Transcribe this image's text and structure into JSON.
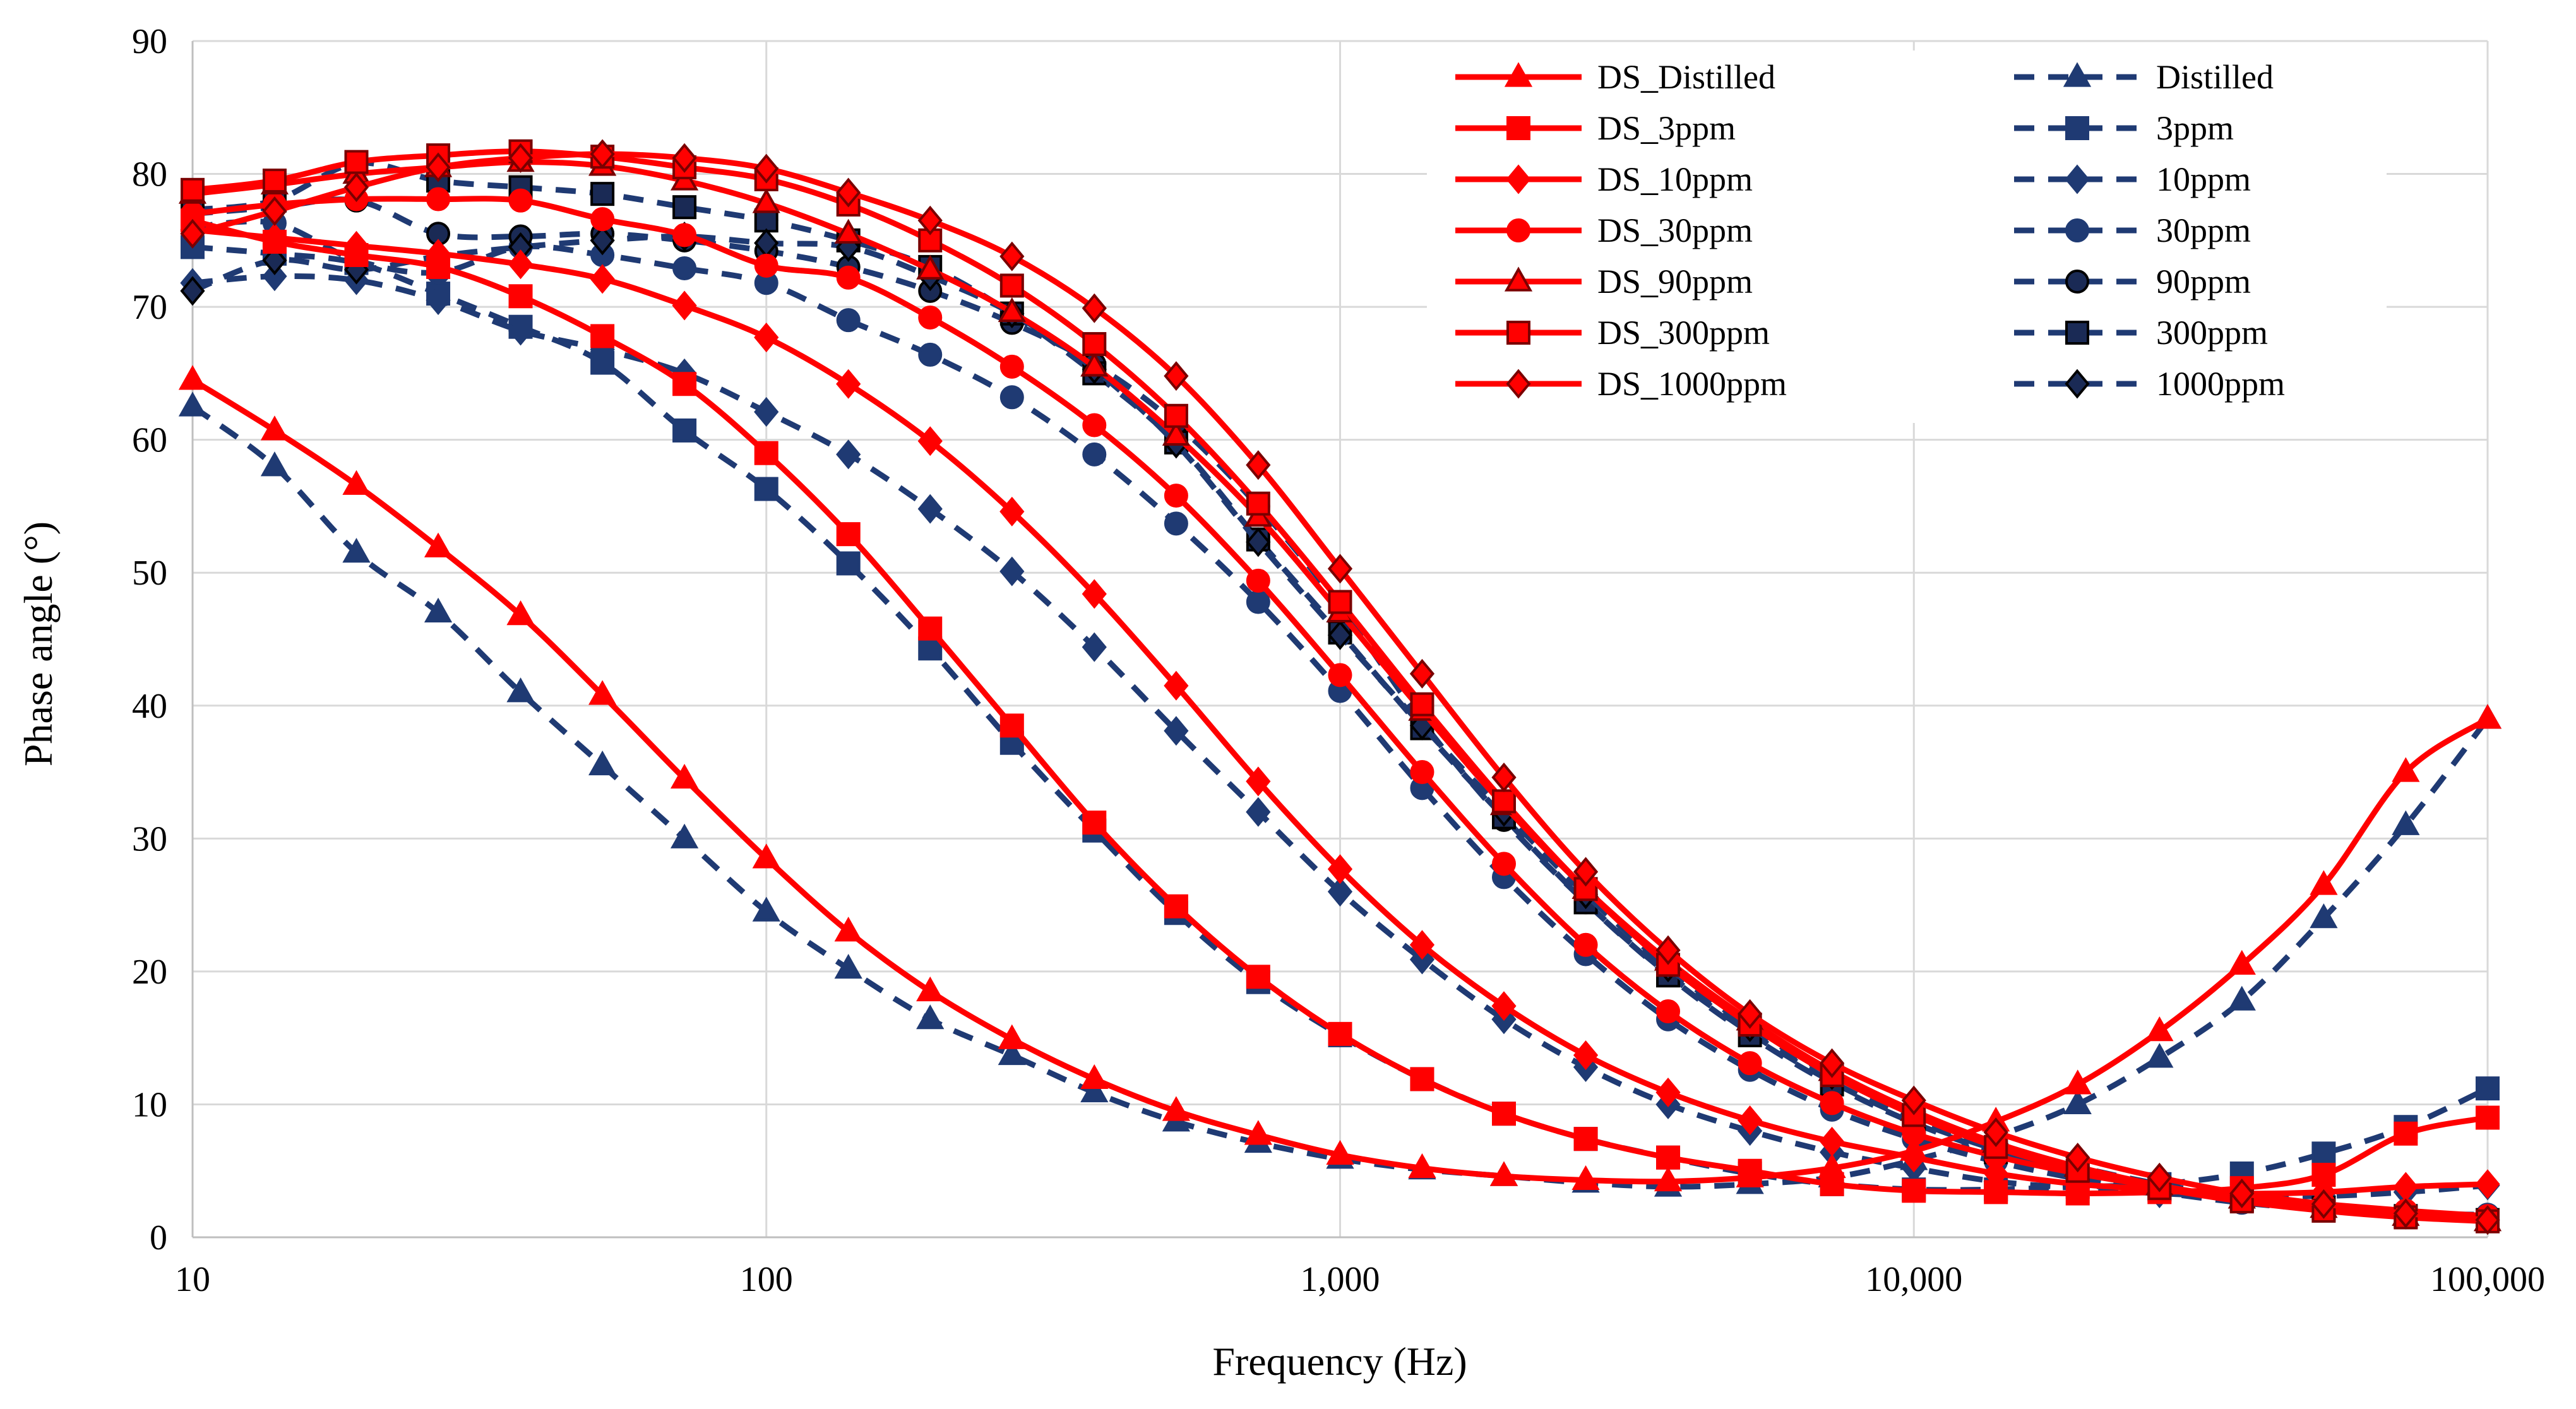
{
  "chart_data": {
    "type": "line",
    "title": "",
    "xlabel": "Frequency (Hz)",
    "ylabel": "Phase angle (°)",
    "xscale": "log",
    "xlim": [
      10,
      100000
    ],
    "ylim": [
      0,
      90
    ],
    "grid": true,
    "legend_position": "top-right",
    "x_ticks": [
      10,
      100,
      1000,
      10000,
      100000
    ],
    "x_tick_labels": [
      "10",
      "100",
      "1,000",
      "10,000",
      "100,000"
    ],
    "y_ticks": [
      0,
      10,
      20,
      30,
      40,
      50,
      60,
      70,
      80,
      90
    ],
    "y_tick_labels": [
      "0",
      "10",
      "20",
      "30",
      "40",
      "50",
      "60",
      "70",
      "80",
      "90"
    ],
    "x": [
      10,
      13.9,
      19.3,
      26.8,
      37.3,
      51.8,
      72,
      100,
      139,
      193,
      268,
      373,
      518,
      720,
      1000,
      1390,
      1930,
      2680,
      3730,
      5180,
      7200,
      10000,
      13900,
      19300,
      26800,
      37300,
      51800,
      72000,
      100000
    ],
    "series": [
      {
        "name": "DS_Distilled",
        "style": "solid",
        "color": "#ff0000",
        "marker": "triangle",
        "values": [
          64.5,
          60.7,
          56.6,
          51.9,
          46.8,
          40.8,
          34.5,
          28.5,
          23.0,
          18.5,
          14.9,
          11.9,
          9.5,
          7.7,
          6.2,
          5.2,
          4.6,
          4.3,
          4.2,
          4.5,
          5.2,
          6.5,
          8.7,
          11.5,
          15.5,
          20.5,
          26.5,
          35.0,
          39.0
        ]
      },
      {
        "name": "DS_3ppm",
        "style": "solid",
        "color": "#ff0000",
        "marker": "square",
        "values": [
          76.5,
          74.9,
          73.9,
          73.0,
          70.8,
          67.8,
          64.2,
          59.0,
          52.9,
          45.8,
          38.5,
          31.2,
          24.9,
          19.6,
          15.3,
          11.9,
          9.3,
          7.4,
          6.0,
          5.0,
          4.0,
          3.5,
          3.4,
          3.3,
          3.4,
          3.7,
          4.7,
          7.8,
          9.0
        ]
      },
      {
        "name": "DS_10ppm",
        "style": "solid",
        "color": "#ff0000",
        "marker": "diamond",
        "values": [
          75.8,
          75.2,
          74.6,
          74.0,
          73.2,
          72.1,
          70.1,
          67.7,
          64.2,
          59.9,
          54.6,
          48.4,
          41.5,
          34.3,
          27.7,
          22.0,
          17.4,
          13.7,
          10.9,
          8.8,
          7.2,
          6.0,
          4.8,
          4.0,
          3.6,
          3.3,
          3.4,
          3.8,
          4.0
        ]
      },
      {
        "name": "DS_30ppm",
        "style": "solid",
        "color": "#ff0000",
        "marker": "circle",
        "values": [
          77.0,
          77.7,
          78.1,
          78.1,
          78.0,
          76.6,
          75.4,
          73.1,
          72.2,
          69.2,
          65.5,
          61.1,
          55.8,
          49.4,
          42.3,
          35.0,
          28.1,
          22.0,
          17.0,
          13.1,
          10.1,
          7.8,
          6.1,
          4.8,
          3.8,
          3.0,
          2.5,
          2.0,
          1.6
        ]
      },
      {
        "name": "DS_90ppm",
        "style": "solid",
        "color": "#ff0000",
        "marker": "triangle",
        "values": [
          78.5,
          79.2,
          80.0,
          80.5,
          80.9,
          80.6,
          79.5,
          77.8,
          75.5,
          72.8,
          69.6,
          65.5,
          60.3,
          54.2,
          47.0,
          39.6,
          32.5,
          26.2,
          20.8,
          16.3,
          12.5,
          9.5,
          7.1,
          5.3,
          3.9,
          2.9,
          2.2,
          1.6,
          1.2
        ]
      },
      {
        "name": "DS_300ppm",
        "style": "solid",
        "color": "#ff0000",
        "marker": "square",
        "values": [
          78.8,
          79.5,
          80.9,
          81.4,
          81.7,
          81.3,
          80.5,
          79.6,
          77.7,
          75.0,
          71.6,
          67.2,
          61.8,
          55.2,
          47.8,
          40.1,
          32.8,
          26.2,
          20.5,
          16.0,
          12.2,
          9.2,
          6.8,
          5.0,
          3.7,
          2.7,
          2.0,
          1.5,
          1.2
        ]
      },
      {
        "name": "DS_1000ppm",
        "style": "solid",
        "color": "#ff0000",
        "marker": "diamond",
        "values": [
          75.5,
          77.2,
          79.0,
          80.5,
          81.2,
          81.5,
          81.2,
          80.4,
          78.6,
          76.5,
          73.8,
          69.9,
          64.8,
          58.1,
          50.3,
          42.4,
          34.6,
          27.5,
          21.6,
          16.8,
          13.1,
          10.3,
          7.9,
          6.0,
          4.5,
          3.3,
          2.5,
          1.8,
          1.3
        ]
      },
      {
        "name": "Distilled",
        "style": "dashed",
        "color": "#1f3a73",
        "marker": "triangle",
        "values": [
          62.5,
          58.0,
          51.5,
          47.0,
          41.0,
          35.5,
          30.0,
          24.5,
          20.2,
          16.4,
          13.7,
          10.9,
          8.7,
          7.1,
          5.9,
          5.1,
          4.6,
          4.1,
          3.8,
          4.0,
          4.5,
          5.8,
          7.6,
          10.0,
          13.5,
          17.8,
          24.0,
          31.0,
          39.0
        ]
      },
      {
        "name": "3ppm",
        "style": "dashed",
        "color": "#1f3a73",
        "marker": "square",
        "values": [
          74.5,
          74.0,
          73.3,
          71.0,
          68.5,
          65.8,
          60.7,
          56.3,
          50.7,
          44.3,
          37.2,
          30.6,
          24.4,
          19.2,
          15.2,
          11.9,
          9.3,
          7.4,
          6.0,
          4.8,
          4.0,
          3.6,
          3.6,
          3.8,
          4.0,
          4.8,
          6.3,
          8.3,
          11.2
        ]
      },
      {
        "name": "10ppm",
        "style": "dashed",
        "color": "#1f3a73",
        "marker": "diamond",
        "values": [
          71.8,
          72.3,
          72.0,
          70.5,
          68.2,
          66.8,
          65.0,
          62.1,
          58.9,
          54.8,
          50.1,
          44.4,
          38.1,
          32.0,
          26.0,
          20.9,
          16.4,
          12.8,
          10.0,
          8.0,
          6.4,
          5.2,
          4.2,
          3.7,
          3.3,
          3.1,
          3.1,
          3.4,
          3.9
        ]
      },
      {
        "name": "30ppm",
        "style": "dashed",
        "color": "#1f3a73",
        "marker": "circle",
        "values": [
          76.0,
          76.3,
          73.5,
          72.6,
          74.5,
          73.9,
          72.9,
          71.8,
          69.0,
          66.4,
          63.2,
          58.9,
          53.7,
          47.8,
          41.1,
          33.8,
          27.1,
          21.3,
          16.4,
          12.6,
          9.6,
          7.4,
          5.7,
          4.4,
          3.4,
          2.6,
          2.1,
          1.8,
          1.7
        ]
      },
      {
        "name": "90ppm",
        "style": "dashed",
        "color": "#1f3a73",
        "marker": "circle",
        "values": [
          77.0,
          77.5,
          78.0,
          75.5,
          75.3,
          75.5,
          75.0,
          74.2,
          73.0,
          71.2,
          68.8,
          65.7,
          61.2,
          55.0,
          47.5,
          38.8,
          31.4,
          25.2,
          19.8,
          15.4,
          11.7,
          8.8,
          6.6,
          5.0,
          3.7,
          2.8,
          2.2,
          1.8,
          1.5
        ]
      },
      {
        "name": "300ppm",
        "style": "dashed",
        "color": "#1f3a73",
        "marker": "square",
        "values": [
          77.3,
          78.0,
          80.8,
          79.5,
          79.0,
          78.5,
          77.5,
          76.5,
          75.0,
          73.0,
          69.5,
          65.0,
          59.8,
          52.5,
          45.5,
          38.3,
          31.6,
          25.2,
          19.7,
          15.2,
          11.5,
          8.6,
          6.4,
          4.8,
          3.6,
          2.8,
          2.2,
          1.6,
          1.3
        ]
      },
      {
        "name": "1000ppm",
        "style": "dashed",
        "color": "#1f3a73",
        "marker": "diamond",
        "values": [
          71.2,
          73.5,
          72.8,
          73.8,
          74.5,
          75.0,
          75.3,
          74.8,
          74.5,
          72.3,
          69.5,
          65.3,
          59.7,
          52.3,
          45.3,
          38.5,
          32.0,
          25.8,
          20.3,
          15.8,
          12.2,
          9.3,
          7.0,
          5.3,
          4.0,
          3.0,
          2.3,
          1.7,
          1.3
        ]
      }
    ]
  }
}
